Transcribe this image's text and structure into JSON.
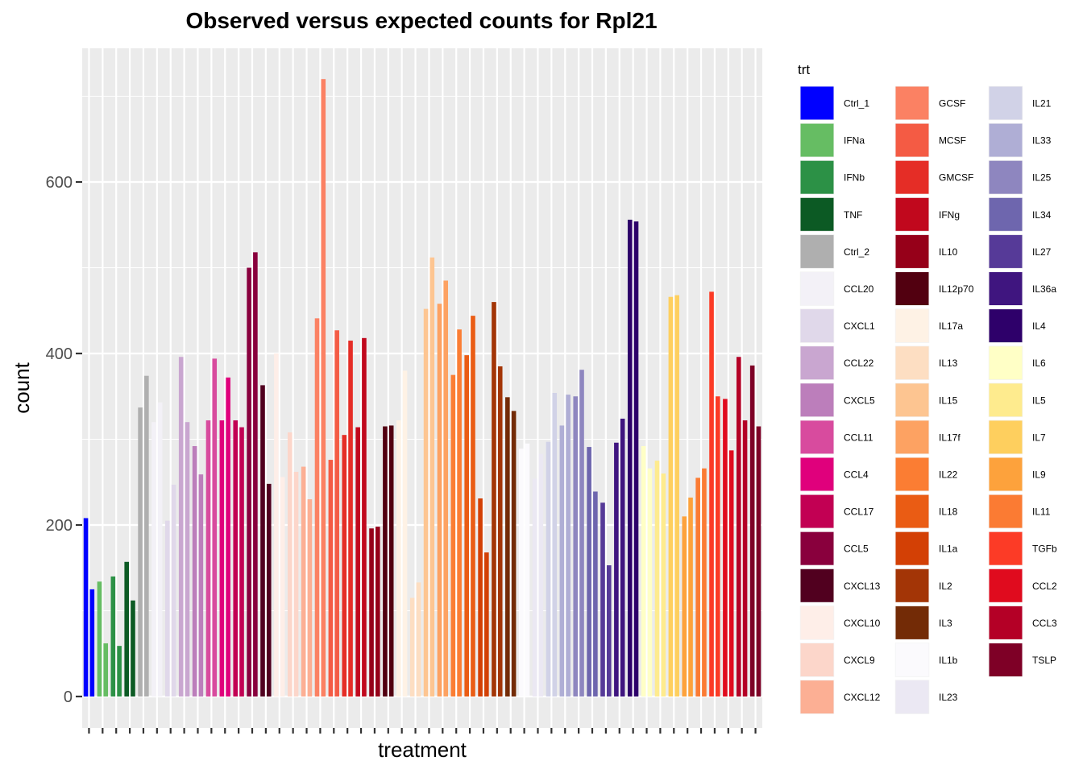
{
  "chart_data": {
    "type": "bar",
    "title": "Observed versus expected counts for Rpl21",
    "xlabel": "treatment",
    "ylabel": "count",
    "ylim": [
      -62,
      750
    ],
    "yticks": [
      0,
      200,
      400,
      600
    ],
    "grid": true,
    "legend_title": "trt",
    "legend_position": "right",
    "treatments": [
      {
        "name": "Ctrl_1",
        "color": "#0000FF",
        "values": [
          208,
          125
        ]
      },
      {
        "name": "IFNa",
        "color": "#66BD63",
        "values": [
          134,
          62
        ]
      },
      {
        "name": "IFNb",
        "color": "#2C9146",
        "values": [
          140,
          59
        ]
      },
      {
        "name": "TNF",
        "color": "#0C5A24",
        "values": [
          157,
          112
        ]
      },
      {
        "name": "Ctrl_2",
        "color": "#AFAFAF",
        "values": [
          337,
          374
        ]
      },
      {
        "name": "CCL20",
        "color": "#F3F1F7",
        "values": [
          320,
          343
        ]
      },
      {
        "name": "CXCL1",
        "color": "#E0D8EA",
        "values": [
          205,
          247
        ]
      },
      {
        "name": "CCL22",
        "color": "#C9A6D0",
        "values": [
          396,
          320
        ]
      },
      {
        "name": "CXCL5",
        "color": "#BC7EBB",
        "values": [
          292,
          259
        ]
      },
      {
        "name": "CCL11",
        "color": "#D84B9E",
        "values": [
          322,
          394
        ]
      },
      {
        "name": "CCL4",
        "color": "#E0007C",
        "values": [
          322,
          372
        ]
      },
      {
        "name": "CCL17",
        "color": "#C20053",
        "values": [
          322,
          314
        ]
      },
      {
        "name": "CCL5",
        "color": "#89003D",
        "values": [
          500,
          518
        ]
      },
      {
        "name": "CXCL13",
        "color": "#51001F",
        "values": [
          363,
          248
        ]
      },
      {
        "name": "CXCL10",
        "color": "#FEEEE8",
        "values": [
          400,
          256
        ]
      },
      {
        "name": "CXCL9",
        "color": "#FCD6CA",
        "values": [
          308,
          262
        ]
      },
      {
        "name": "CXCL12",
        "color": "#FCAF94",
        "values": [
          268,
          230
        ]
      },
      {
        "name": "GCSF",
        "color": "#FB8163",
        "values": [
          441,
          720
        ]
      },
      {
        "name": "MCSF",
        "color": "#F45B44",
        "values": [
          276,
          427
        ]
      },
      {
        "name": "GMCSF",
        "color": "#E52D26",
        "values": [
          305,
          415
        ]
      },
      {
        "name": "IFNg",
        "color": "#C1081D",
        "values": [
          314,
          418
        ]
      },
      {
        "name": "IL10",
        "color": "#960019",
        "values": [
          196,
          198
        ]
      },
      {
        "name": "IL12p70",
        "color": "#520010",
        "values": [
          315,
          316
        ]
      },
      {
        "name": "IL17a",
        "color": "#FEF2E5",
        "values": [
          322,
          380
        ]
      },
      {
        "name": "IL13",
        "color": "#FDDEC2",
        "values": [
          115,
          133
        ]
      },
      {
        "name": "IL15",
        "color": "#FDC591",
        "values": [
          452,
          512
        ]
      },
      {
        "name": "IL17f",
        "color": "#FDA262",
        "values": [
          458,
          485
        ]
      },
      {
        "name": "IL22",
        "color": "#FB7D33",
        "values": [
          375,
          428
        ]
      },
      {
        "name": "IL18",
        "color": "#EA5C14",
        "values": [
          398,
          444
        ]
      },
      {
        "name": "IL1a",
        "color": "#D34005",
        "values": [
          231,
          168
        ]
      },
      {
        "name": "IL2",
        "color": "#A33506",
        "values": [
          460,
          385
        ]
      },
      {
        "name": "IL3",
        "color": "#732B06",
        "values": [
          349,
          333
        ]
      },
      {
        "name": "IL1b",
        "color": "#FBFAFD",
        "values": [
          289,
          295
        ]
      },
      {
        "name": "IL23",
        "color": "#EBE8F3",
        "values": [
          254,
          283
        ]
      },
      {
        "name": "IL21",
        "color": "#D1D2E7",
        "values": [
          297,
          354
        ]
      },
      {
        "name": "IL33",
        "color": "#AFAED5",
        "values": [
          316,
          352
        ]
      },
      {
        "name": "IL25",
        "color": "#8E86BF",
        "values": [
          350,
          381
        ]
      },
      {
        "name": "IL34",
        "color": "#6E66AE",
        "values": [
          291,
          239
        ]
      },
      {
        "name": "IL27",
        "color": "#563A98",
        "values": [
          226,
          153
        ]
      },
      {
        "name": "IL36a",
        "color": "#3F157F",
        "values": [
          296,
          324
        ]
      },
      {
        "name": "IL4",
        "color": "#2E006A",
        "values": [
          556,
          554
        ]
      },
      {
        "name": "IL6",
        "color": "#FFFFC6",
        "values": [
          292,
          266
        ]
      },
      {
        "name": "IL5",
        "color": "#FEEB8E",
        "values": [
          275,
          260
        ]
      },
      {
        "name": "IL7",
        "color": "#FECF5E",
        "values": [
          466,
          468
        ]
      },
      {
        "name": "IL9",
        "color": "#FDA23C",
        "values": [
          210,
          232
        ]
      },
      {
        "name": "IL11",
        "color": "#FB7B33",
        "values": [
          255,
          266
        ]
      },
      {
        "name": "TGFb",
        "color": "#FC3B26",
        "values": [
          472,
          350
        ]
      },
      {
        "name": "CCL2",
        "color": "#E00B1E",
        "values": [
          347,
          287
        ]
      },
      {
        "name": "CCL3",
        "color": "#B40026",
        "values": [
          396,
          322
        ]
      },
      {
        "name": "TSLP",
        "color": "#7E0026",
        "values": [
          386,
          315
        ]
      }
    ]
  }
}
